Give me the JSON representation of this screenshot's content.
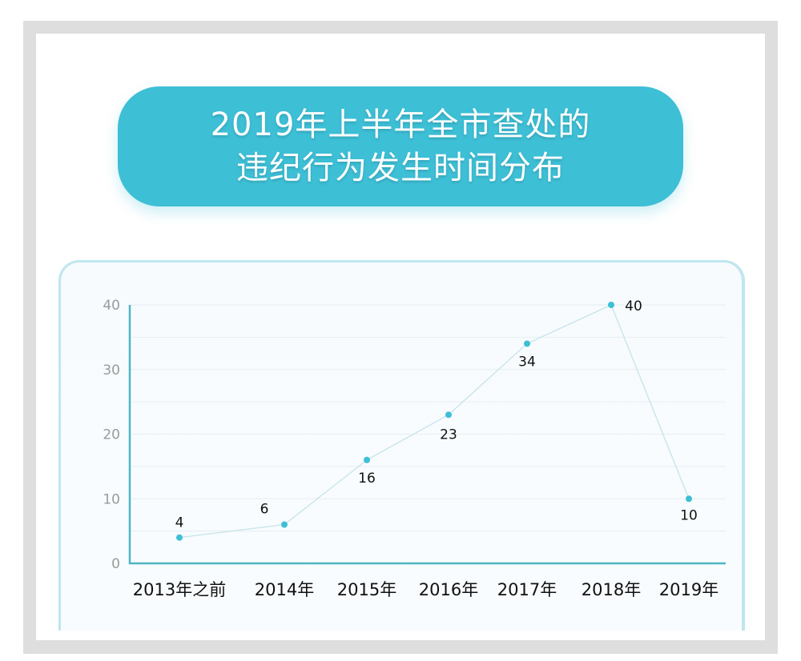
{
  "title": {
    "line1": "2019年上半年全市查处的",
    "line2": "违纪行为发生时间分布"
  },
  "colors": {
    "accent": "#3dbfd6",
    "axis": "#4fb5c4",
    "line": "#c6e3ea",
    "point": "#3dbfd6",
    "frame": "#dedede"
  },
  "chart_data": {
    "type": "line",
    "title": "2019年上半年全市查处的违纪行为发生时间分布",
    "xlabel": "",
    "ylabel": "",
    "categories": [
      "2013年之前",
      "2014年",
      "2015年",
      "2016年",
      "2017年",
      "2018年",
      "2019年"
    ],
    "values": [
      4,
      6,
      16,
      23,
      34,
      40,
      10
    ],
    "ylim": [
      0,
      40
    ],
    "yticks": [
      0,
      10,
      20,
      30,
      40
    ],
    "grid": true,
    "legend": null
  }
}
